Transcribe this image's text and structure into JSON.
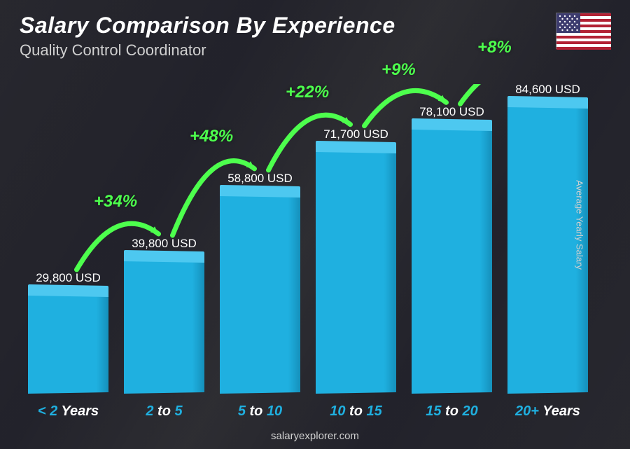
{
  "title": "Salary Comparison By Experience",
  "subtitle": "Quality Control Coordinator",
  "footer": "salaryexplorer.com",
  "y_axis_label": "Average Yearly Salary",
  "flag": {
    "country": "United States"
  },
  "chart": {
    "type": "bar",
    "max_value": 90000,
    "bar_color_top": "#4dc8f0",
    "bar_color_front": "#1fb0e0",
    "bar_color_side": "#1590bb",
    "accent_text_color": "#1fb0e0",
    "growth_color": "#4dff4d",
    "value_text_color": "#ffffff",
    "title_color": "#ffffff",
    "subtitle_color": "#d0d0d0",
    "title_fontsize": 32,
    "subtitle_fontsize": 22,
    "value_fontsize": 17,
    "xlabel_fontsize": 20,
    "growth_fontsize": 24,
    "bars": [
      {
        "label_accent": "< 2",
        "label_white": " Years",
        "value": 29800,
        "value_label": "29,800 USD"
      },
      {
        "label_accent": "2",
        "label_white": " to ",
        "label_accent2": "5",
        "value": 39800,
        "value_label": "39,800 USD",
        "growth": "+34%"
      },
      {
        "label_accent": "5",
        "label_white": " to ",
        "label_accent2": "10",
        "value": 58800,
        "value_label": "58,800 USD",
        "growth": "+48%"
      },
      {
        "label_accent": "10",
        "label_white": " to ",
        "label_accent2": "15",
        "value": 71700,
        "value_label": "71,700 USD",
        "growth": "+22%"
      },
      {
        "label_accent": "15",
        "label_white": " to ",
        "label_accent2": "20",
        "value": 78100,
        "value_label": "78,100 USD",
        "growth": "+9%"
      },
      {
        "label_accent": "20+",
        "label_white": " Years",
        "value": 84600,
        "value_label": "84,600 USD",
        "growth": "+8%"
      }
    ]
  }
}
